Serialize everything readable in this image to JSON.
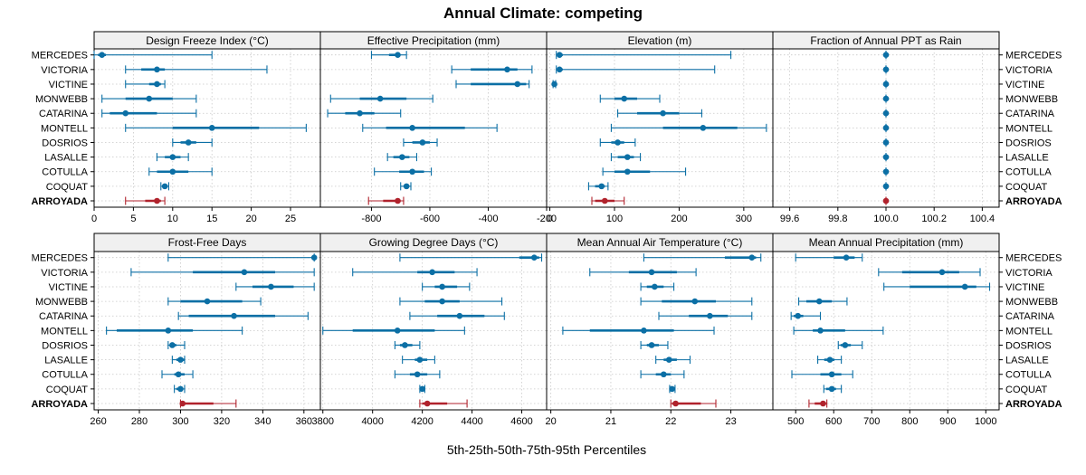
{
  "colors": {
    "series": "#0b6fa5",
    "highlight": "#b0222c",
    "grid": "#c8c8c8",
    "strip": "#f0f0f0"
  },
  "chart_data": {
    "type": "interval-dot",
    "title": "Annual Climate: competing",
    "xlabel": "5th-25th-50th-75th-95th Percentiles",
    "sites": [
      "ARROYADA",
      "COQUAT",
      "COTULLA",
      "LASALLE",
      "DOSRIOS",
      "MONTELL",
      "CATARINA",
      "MONWEBB",
      "VICTINE",
      "VICTORIA",
      "MERCEDES"
    ],
    "highlight_site": "ARROYADA",
    "panels": [
      {
        "title": "Frost-Free Days",
        "xlim": [
          258,
          368
        ],
        "ticks": [
          260,
          280,
          300,
          320,
          340,
          360
        ],
        "tick_labels": [
          "260",
          "280",
          "300",
          "320",
          "340",
          "360"
        ],
        "data": [
          [
            300,
            300,
            301,
            316,
            327
          ],
          [
            297,
            298,
            300,
            301,
            302
          ],
          [
            291,
            297,
            299,
            302,
            306
          ],
          [
            296,
            298,
            300,
            302,
            302
          ],
          [
            294,
            295,
            296,
            298,
            302
          ],
          [
            264,
            269,
            294,
            306,
            330
          ],
          [
            299,
            304,
            326,
            346,
            362
          ],
          [
            294,
            300,
            313,
            330,
            339
          ],
          [
            327,
            335,
            344,
            355,
            365
          ],
          [
            276,
            306,
            331,
            346,
            365
          ],
          [
            294,
            364,
            365,
            365,
            365
          ]
        ]
      },
      {
        "title": "Growing Degree Days (°C)",
        "xlim": [
          3790,
          4700
        ],
        "ticks": [
          3800,
          4000,
          4200,
          4400,
          4600
        ],
        "tick_labels": [
          "3800",
          "4000",
          "4200",
          "4400",
          "4600"
        ],
        "data": [
          [
            4190,
            4200,
            4220,
            4300,
            4380
          ],
          [
            4190,
            4195,
            4200,
            4205,
            4210
          ],
          [
            4090,
            4150,
            4180,
            4220,
            4270
          ],
          [
            4120,
            4170,
            4190,
            4220,
            4250
          ],
          [
            4090,
            4110,
            4130,
            4160,
            4190
          ],
          [
            3800,
            3920,
            4100,
            4250,
            4370
          ],
          [
            4150,
            4260,
            4350,
            4450,
            4530
          ],
          [
            4110,
            4210,
            4280,
            4350,
            4520
          ],
          [
            4200,
            4250,
            4280,
            4340,
            4390
          ],
          [
            3920,
            4180,
            4240,
            4330,
            4420
          ],
          [
            4110,
            4590,
            4650,
            4670,
            4680
          ]
        ]
      },
      {
        "title": "Mean Annual Air Temperature (°C)",
        "xlim": [
          19.93,
          23.7
        ],
        "ticks": [
          20,
          21,
          22,
          23
        ],
        "tick_labels": [
          "20",
          "21",
          "22",
          "23"
        ],
        "data": [
          [
            22.0,
            22.02,
            22.08,
            22.5,
            22.75
          ],
          [
            21.98,
            22.0,
            22.02,
            22.04,
            22.07
          ],
          [
            21.5,
            21.75,
            21.88,
            22.0,
            22.22
          ],
          [
            21.75,
            21.88,
            21.97,
            22.1,
            22.32
          ],
          [
            21.5,
            21.6,
            21.68,
            21.8,
            21.95
          ],
          [
            20.2,
            20.65,
            21.55,
            22.05,
            22.72
          ],
          [
            21.8,
            22.3,
            22.65,
            22.95,
            23.35
          ],
          [
            21.5,
            21.85,
            22.4,
            22.75,
            23.35
          ],
          [
            21.5,
            21.6,
            21.73,
            21.88,
            22.05
          ],
          [
            20.65,
            21.3,
            21.68,
            22.1,
            22.42
          ],
          [
            21.55,
            22.9,
            23.35,
            23.42,
            23.5
          ]
        ]
      },
      {
        "title": "Mean Annual Precipitation (mm)",
        "xlim": [
          440,
          1035
        ],
        "ticks": [
          500,
          600,
          700,
          800,
          900,
          1000
        ],
        "tick_labels": [
          "500",
          "600",
          "700",
          "800",
          "900",
          "1000"
        ],
        "data": [
          [
            535,
            550,
            572,
            580,
            582
          ],
          [
            574,
            580,
            595,
            606,
            620
          ],
          [
            490,
            565,
            595,
            620,
            650
          ],
          [
            558,
            575,
            590,
            602,
            620
          ],
          [
            612,
            618,
            630,
            645,
            675
          ],
          [
            495,
            545,
            565,
            630,
            730
          ],
          [
            488,
            495,
            506,
            520,
            565
          ],
          [
            508,
            528,
            562,
            595,
            635
          ],
          [
            732,
            800,
            945,
            975,
            1010
          ],
          [
            718,
            780,
            885,
            930,
            985
          ],
          [
            500,
            600,
            633,
            655,
            675
          ]
        ]
      },
      {
        "title": "Design Freeze Index (°C)",
        "xlim": [
          0,
          28.8
        ],
        "ticks": [
          0,
          5,
          10,
          15,
          20,
          25
        ],
        "tick_labels": [
          "0",
          "5",
          "10",
          "15",
          "20",
          "25"
        ],
        "data": [
          [
            4,
            6.5,
            8,
            8.5,
            9
          ],
          [
            8.5,
            8.8,
            9,
            9.2,
            9.5
          ],
          [
            7,
            8,
            10,
            12,
            15
          ],
          [
            8,
            9,
            10,
            11,
            12
          ],
          [
            10,
            11,
            12,
            13,
            15
          ],
          [
            4,
            10,
            15,
            21,
            27
          ],
          [
            1,
            2,
            4,
            8,
            13
          ],
          [
            1,
            4,
            7,
            10,
            13
          ],
          [
            4,
            7,
            8,
            8.5,
            9
          ],
          [
            4,
            6,
            8,
            9,
            22
          ],
          [
            0,
            0.5,
            1,
            1.5,
            15
          ]
        ]
      },
      {
        "title": "Effective Precipitation (mm)",
        "xlim": [
          -975,
          -200
        ],
        "ticks": [
          -800,
          -600,
          -400,
          -200
        ],
        "tick_labels": [
          "-800",
          "-600",
          "-400",
          "-200"
        ],
        "data": [
          [
            -810,
            -760,
            -710,
            -700,
            -690
          ],
          [
            -700,
            -690,
            -680,
            -675,
            -665
          ],
          [
            -790,
            -705,
            -660,
            -620,
            -595
          ],
          [
            -745,
            -725,
            -695,
            -670,
            -645
          ],
          [
            -690,
            -660,
            -625,
            -600,
            -575
          ],
          [
            -830,
            -750,
            -660,
            -480,
            -370
          ],
          [
            -950,
            -890,
            -840,
            -790,
            -700
          ],
          [
            -940,
            -840,
            -770,
            -680,
            -590
          ],
          [
            -510,
            -460,
            -300,
            -270,
            -260
          ],
          [
            -525,
            -460,
            -335,
            -300,
            -250
          ],
          [
            -800,
            -740,
            -710,
            -710,
            -680
          ]
        ]
      },
      {
        "title": "Elevation (m)",
        "xlim": [
          -5,
          345
        ],
        "ticks": [
          0,
          100,
          200,
          300
        ],
        "tick_labels": [
          "0",
          "100",
          "200",
          "300"
        ],
        "data": [
          [
            65,
            70,
            85,
            100,
            115
          ],
          [
            60,
            70,
            80,
            85,
            90
          ],
          [
            82,
            100,
            120,
            155,
            210
          ],
          [
            95,
            105,
            120,
            130,
            140
          ],
          [
            78,
            95,
            105,
            115,
            132
          ],
          [
            95,
            175,
            237,
            290,
            335
          ],
          [
            105,
            135,
            175,
            200,
            235
          ],
          [
            78,
            100,
            115,
            135,
            170
          ],
          [
            5,
            6,
            7,
            8,
            9
          ],
          [
            10,
            12,
            15,
            20,
            255
          ],
          [
            10,
            12,
            15,
            20,
            280
          ]
        ]
      },
      {
        "title": "Fraction of Annual PPT as Rain",
        "xlim": [
          99.53,
          100.47
        ],
        "ticks": [
          99.6,
          99.8,
          100.0,
          100.2,
          100.4
        ],
        "tick_labels": [
          "99.6",
          "99.8",
          "100.0",
          "100.2",
          "100.4"
        ],
        "data": [
          [
            100,
            100,
            100,
            100,
            100
          ],
          [
            100,
            100,
            100,
            100,
            100
          ],
          [
            100,
            100,
            100,
            100,
            100
          ],
          [
            100,
            100,
            100,
            100,
            100
          ],
          [
            100,
            100,
            100,
            100,
            100
          ],
          [
            100,
            100,
            100,
            100,
            100
          ],
          [
            100,
            100,
            100,
            100,
            100
          ],
          [
            100,
            100,
            100,
            100,
            100
          ],
          [
            100,
            100,
            100,
            100,
            100
          ],
          [
            100,
            100,
            100,
            100,
            100
          ],
          [
            100,
            100,
            100,
            100,
            100
          ]
        ]
      }
    ]
  }
}
